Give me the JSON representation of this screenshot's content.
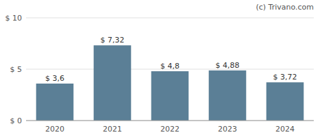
{
  "chart_data": {
    "type": "bar",
    "annotations": [
      "(c) Trivano.com"
    ],
    "categories": [
      "2020",
      "2021",
      "2022",
      "2023",
      "2024"
    ],
    "values": [
      3.6,
      7.32,
      4.8,
      4.88,
      3.72
    ],
    "value_labels": [
      "$ 3,6",
      "$ 7,32",
      "$ 4,8",
      "$ 4,88",
      "$ 3,72"
    ],
    "color": "#5b7f96",
    "ylim": [
      0,
      10
    ],
    "yticks": [
      {
        "value": 0,
        "label": "$ 0"
      },
      {
        "value": 5,
        "label": "$ 5"
      },
      {
        "value": 10,
        "label": "$ 10"
      }
    ],
    "grid": true,
    "data_labels": true
  }
}
